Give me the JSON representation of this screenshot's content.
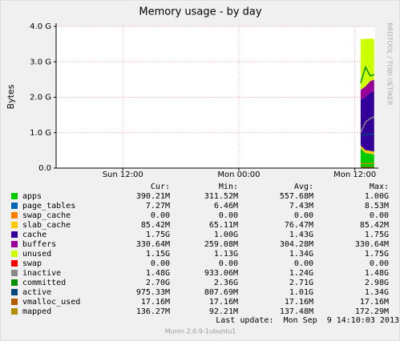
{
  "chart_data": {
    "type": "area",
    "title": "Memory usage - by day",
    "y_label": "Bytes",
    "side_text": "RRDTOOL / TOBI OETIKER",
    "x": [
      36.6,
      37.1,
      37.6,
      38.0
    ],
    "xlim": [
      5.1,
      38.1
    ],
    "xticks": [
      {
        "value": 12,
        "label": "Sun 12:00"
      },
      {
        "value": 24,
        "label": "Mon 00:00"
      },
      {
        "value": 36,
        "label": "Mon 12:00"
      }
    ],
    "ylim": [
      0,
      4
    ],
    "yticks": [
      {
        "value": 0,
        "label": "0.0"
      },
      {
        "value": 1,
        "label": "1.0 G"
      },
      {
        "value": 2,
        "label": "2.0 G"
      },
      {
        "value": 3,
        "label": "3.0 G"
      },
      {
        "value": 4,
        "label": "4.0 G"
      }
    ],
    "grid": true,
    "columns": [
      "Cur:",
      "Min:",
      "Avg:",
      "Max:"
    ],
    "series": [
      {
        "name": "apps",
        "color": "#00cc00",
        "style": "stack",
        "values": [
          0.55,
          0.42,
          0.4,
          0.38
        ],
        "cur": "390.21M",
        "min": "311.52M",
        "avg": "557.68M",
        "max": "1.00G"
      },
      {
        "name": "page_tables",
        "color": "#0066b3",
        "style": "stack",
        "values": [
          0.007,
          0.007,
          0.007,
          0.007
        ],
        "cur": "7.27M",
        "min": "6.46M",
        "avg": "7.43M",
        "max": "8.53M"
      },
      {
        "name": "swap_cache",
        "color": "#ff8000",
        "style": "stack",
        "values": [
          0,
          0,
          0,
          0
        ],
        "cur": "0.00",
        "min": "0.00",
        "avg": "0.00",
        "max": "0.00"
      },
      {
        "name": "slab_cache",
        "color": "#ffcc00",
        "style": "stack",
        "values": [
          0.08,
          0.08,
          0.08,
          0.08
        ],
        "cur": "85.42M",
        "min": "65.11M",
        "avg": "76.47M",
        "max": "85.42M"
      },
      {
        "name": "cache",
        "color": "#330099",
        "style": "stack",
        "values": [
          1.3,
          1.5,
          1.65,
          1.71
        ],
        "cur": "1.75G",
        "min": "1.00G",
        "avg": "1.43G",
        "max": "1.75G"
      },
      {
        "name": "buffers",
        "color": "#990099",
        "style": "stack",
        "values": [
          0.27,
          0.3,
          0.32,
          0.32
        ],
        "cur": "330.64M",
        "min": "259.08M",
        "avg": "304.28M",
        "max": "330.64M"
      },
      {
        "name": "unused",
        "color": "#ccff00",
        "style": "stack",
        "values": [
          1.44,
          1.34,
          1.2,
          1.15
        ],
        "cur": "1.15G",
        "min": "1.13G",
        "avg": "1.34G",
        "max": "1.75G"
      },
      {
        "name": "swap",
        "color": "#ff0000",
        "style": "stack",
        "values": [
          0,
          0,
          0,
          0
        ],
        "cur": "0.00",
        "min": "0.00",
        "avg": "0.00",
        "max": "0.00"
      },
      {
        "name": "inactive",
        "color": "#888888",
        "style": "line",
        "values": [
          1.0,
          1.3,
          1.4,
          1.45
        ],
        "cur": "1.48G",
        "min": "933.06M",
        "avg": "1.24G",
        "max": "1.48G"
      },
      {
        "name": "committed",
        "color": "#008f00",
        "style": "line",
        "values": [
          2.4,
          2.85,
          2.6,
          2.64
        ],
        "cur": "2.70G",
        "min": "2.36G",
        "avg": "2.71G",
        "max": "2.98G"
      },
      {
        "name": "active",
        "color": "#00487d",
        "style": "line",
        "values": [
          0.9,
          0.95,
          0.96,
          0.95
        ],
        "cur": "975.33M",
        "min": "807.69M",
        "avg": "1.01G",
        "max": "1.34G"
      },
      {
        "name": "vmalloc_used",
        "color": "#b35a00",
        "style": "line",
        "values": [
          0.017,
          0.017,
          0.017,
          0.017
        ],
        "cur": "17.16M",
        "min": "17.16M",
        "avg": "17.16M",
        "max": "17.16M"
      },
      {
        "name": "mapped",
        "color": "#b38f00",
        "style": "line",
        "values": [
          0.13,
          0.13,
          0.13,
          0.13
        ],
        "cur": "136.27M",
        "min": "92.21M",
        "avg": "137.48M",
        "max": "172.29M"
      }
    ],
    "last_update": "Last update:  Mon Sep  9 14:10:03 2013",
    "footer": "Munin 2.0.9-1ubuntu1"
  }
}
